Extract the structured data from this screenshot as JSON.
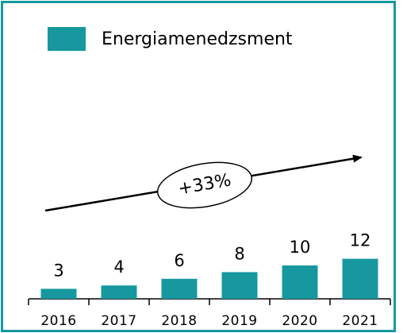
{
  "chart_data": {
    "type": "bar",
    "categories": [
      "2016",
      "2017",
      "2018",
      "2019",
      "2020",
      "2021"
    ],
    "series": [
      {
        "name": "Energiamenedzsment",
        "color": "#17989f",
        "values": [
          3,
          4,
          6,
          8,
          10,
          12
        ]
      }
    ],
    "annotation": "+33%"
  }
}
